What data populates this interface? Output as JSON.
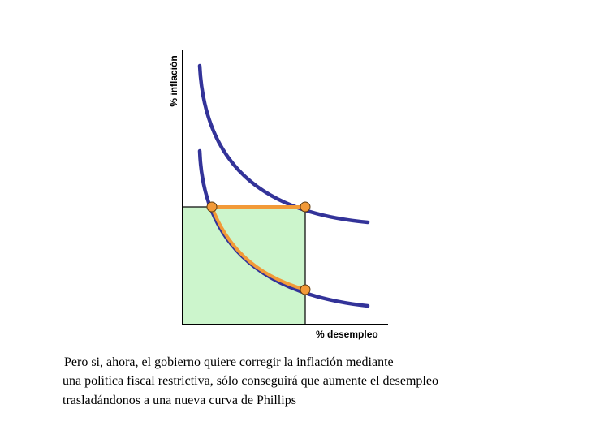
{
  "diagram": {
    "y_axis_label": "% inflación",
    "x_axis_label": "% desempleo",
    "colors": {
      "curve": "#333399",
      "movement": "#f29a38",
      "region_fill": "#ccf5cc",
      "point_fill": "#f29a38",
      "axis": "#000000"
    }
  },
  "caption": {
    "line1": "Pero si, ahora, el gobierno quiere corregir la inflación mediante",
    "line2": "una política fiscal restrictiva, sólo conseguirá que aumente el desempleo",
    "line3": "trasladándonos a una nueva curva de Phillips"
  }
}
